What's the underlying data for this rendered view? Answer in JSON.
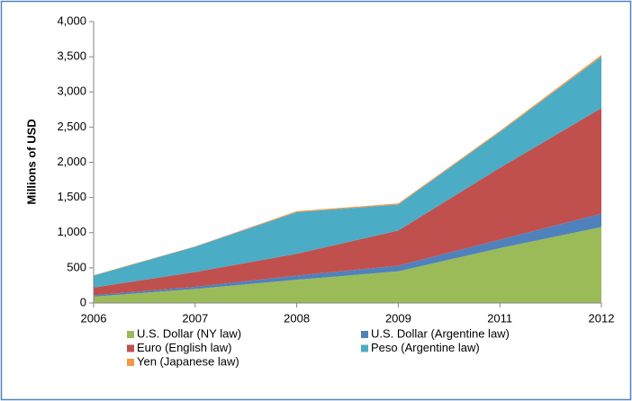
{
  "chart_data": {
    "type": "stacked_area",
    "y_label": "Millions of USD",
    "categories": [
      "2006",
      "2007",
      "2008",
      "2009",
      "2011",
      "2012"
    ],
    "series": [
      {
        "name": "U.S. Dollar (NY law)",
        "color": "#9bbb59",
        "values": [
          90,
          200,
          330,
          450,
          780,
          1080
        ]
      },
      {
        "name": "U.S. Dollar (Argentine law)",
        "color": "#4f81bd",
        "values": [
          20,
          30,
          60,
          80,
          120,
          190
        ]
      },
      {
        "name": "Euro (English law)",
        "color": "#c0504d",
        "values": [
          110,
          210,
          310,
          500,
          1020,
          1500
        ]
      },
      {
        "name": "Peso (Argentine law)",
        "color": "#4bacc6",
        "values": [
          170,
          360,
          590,
          370,
          510,
          730
        ]
      },
      {
        "name": "Yen (Japanese law)",
        "color": "#f79646",
        "values": [
          5,
          5,
          15,
          15,
          15,
          25
        ]
      }
    ],
    "ylim": [
      0,
      4000
    ],
    "yticks": [
      0,
      500,
      {
        "value": 1000,
        "label": "1,000"
      },
      {
        "value": 1500,
        "label": "1,500"
      },
      {
        "value": 2000,
        "label": "2,000"
      },
      {
        "value": 2500,
        "label": "2,500"
      },
      {
        "value": 3000,
        "label": "3,000"
      },
      {
        "value": 3500,
        "label": "3,500"
      },
      {
        "value": 4000,
        "label": "4,000"
      }
    ]
  }
}
